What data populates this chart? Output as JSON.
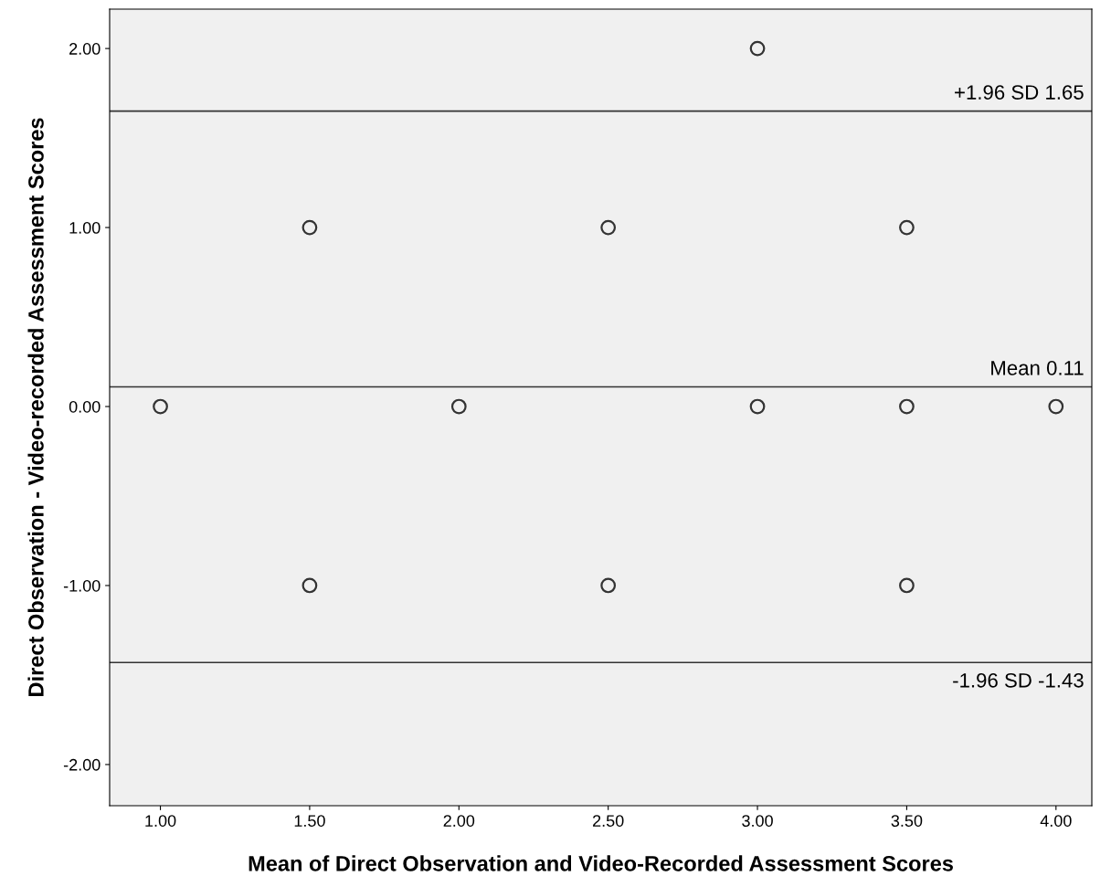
{
  "chart_data": {
    "type": "scatter",
    "xlabel": "Mean of Direct Observation and Video-Recorded Assessment Scores",
    "ylabel": "Direct Observation - Video-recorded Assessment Scores",
    "x": [
      1.0,
      1.5,
      1.5,
      2.0,
      2.5,
      2.5,
      3.0,
      3.0,
      3.5,
      3.5,
      3.5,
      4.0
    ],
    "series": [
      {
        "color": "#333333",
        "values": [
          0,
          1,
          -1,
          0,
          1,
          -1,
          2,
          0,
          1,
          0,
          -1,
          0
        ]
      }
    ],
    "xlim": [
      0.83,
      4.12
    ],
    "ylim": [
      -2.23,
      2.22
    ],
    "xticks": [
      {
        "value": 1,
        "label": "1.00"
      },
      {
        "value": 1.5,
        "label": "1.50"
      },
      {
        "value": 2,
        "label": "2.00"
      },
      {
        "value": 2.5,
        "label": "2.50"
      },
      {
        "value": 3,
        "label": "3.00"
      },
      {
        "value": 3.5,
        "label": "3.50"
      },
      {
        "value": 4,
        "label": "4.00"
      }
    ],
    "yticks": [
      {
        "value": -2,
        "label": "-2.00"
      },
      {
        "value": -1,
        "label": "-1.00"
      },
      {
        "value": 0,
        "label": "0.00"
      },
      {
        "value": 1,
        "label": "1.00"
      },
      {
        "value": 2,
        "label": "2.00"
      }
    ],
    "ref_lines": [
      {
        "axis": "y",
        "value": 1.65,
        "label": "+1.96 SD 1.65"
      },
      {
        "axis": "y",
        "value": 0.11,
        "label": "Mean 0.11"
      },
      {
        "axis": "y",
        "value": -1.43,
        "label": "-1.96 SD -1.43"
      }
    ],
    "marker": "circle",
    "grid": false
  }
}
